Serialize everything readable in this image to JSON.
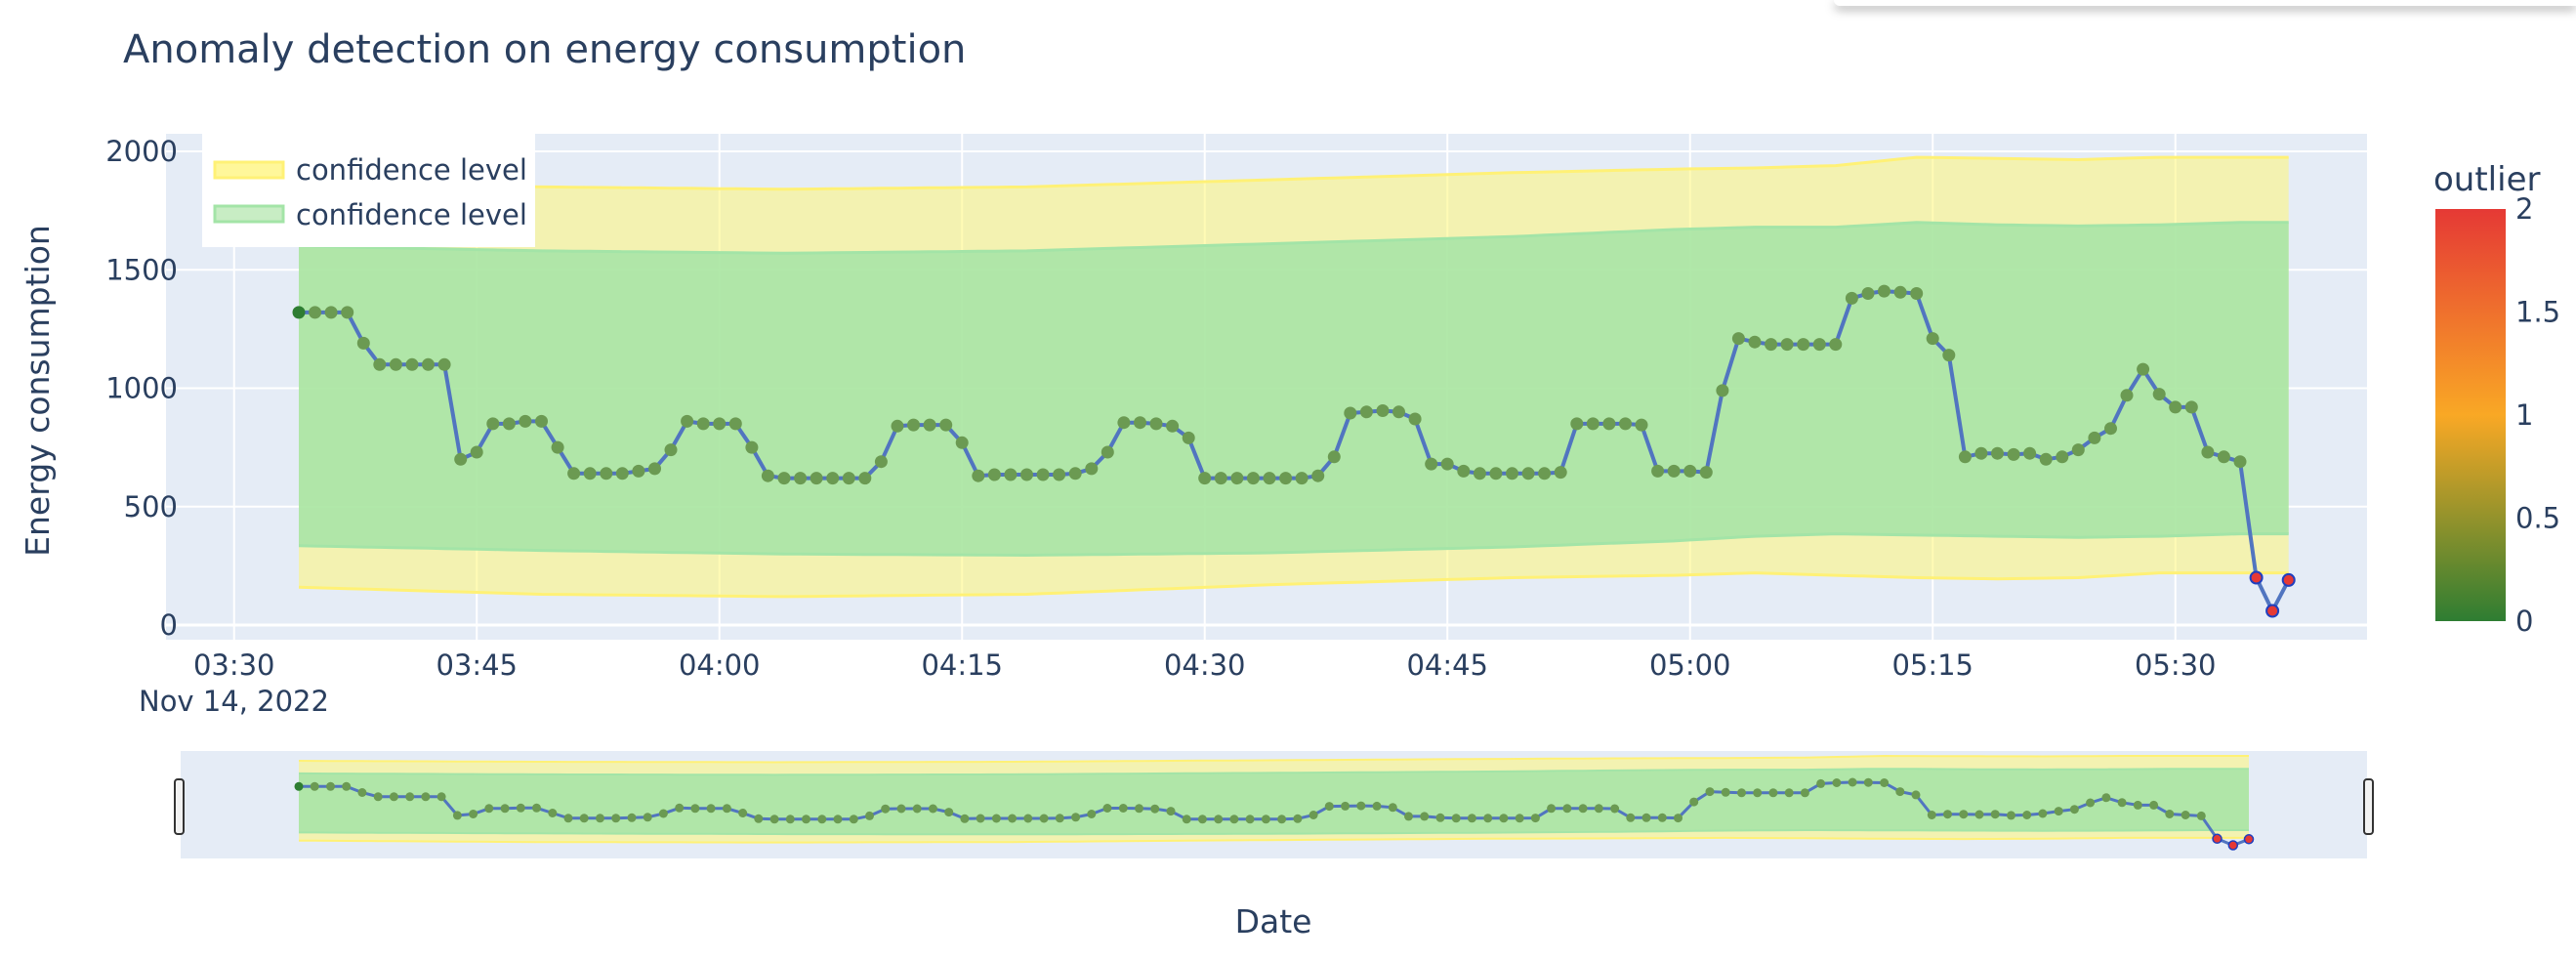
{
  "chart_data": {
    "type": "line",
    "title": "Anomaly detection on energy consumption",
    "xlabel": "Date",
    "ylabel": "Energy consumption",
    "x_start": "2022-11-14 03:34",
    "x_step_minutes": 1,
    "x_ticks": [
      "03:30",
      "03:45",
      "04:00",
      "04:15",
      "04:30",
      "04:45",
      "05:00",
      "05:15",
      "05:30"
    ],
    "x_date_label": "Nov 14, 2022",
    "y_ticks": [
      0,
      500,
      1000,
      1500,
      2000
    ],
    "ylim": [
      -55,
      2080
    ],
    "grid": true,
    "legend_position": "top-left",
    "series": [
      {
        "name": "Energy consumption",
        "values": [
          1320,
          1320,
          1320,
          1320,
          1190,
          1100,
          1100,
          1100,
          1100,
          1100,
          700,
          730,
          850,
          850,
          860,
          860,
          750,
          640,
          640,
          640,
          640,
          650,
          660,
          740,
          860,
          850,
          850,
          850,
          750,
          630,
          620,
          620,
          620,
          620,
          620,
          620,
          690,
          840,
          845,
          845,
          845,
          770,
          630,
          635,
          635,
          635,
          635,
          635,
          640,
          660,
          730,
          855,
          855,
          850,
          840,
          790,
          620,
          620,
          620,
          620,
          620,
          620,
          620,
          630,
          710,
          895,
          900,
          905,
          900,
          870,
          680,
          680,
          650,
          640,
          640,
          640,
          640,
          640,
          645,
          850,
          850,
          850,
          850,
          845,
          650,
          650,
          650,
          645,
          990,
          1210,
          1195,
          1185,
          1185,
          1185,
          1185,
          1185,
          1380,
          1400,
          1410,
          1405,
          1400,
          1210,
          1140,
          710,
          725,
          725,
          720,
          725,
          700,
          710,
          740,
          790,
          830,
          970,
          1080,
          975,
          920,
          920,
          730,
          710,
          690,
          200,
          60,
          190
        ],
        "outlier": [
          0,
          0,
          0,
          0,
          0,
          0,
          0,
          0,
          0,
          0,
          0,
          0,
          0,
          0,
          0,
          0,
          0,
          0,
          0,
          0,
          0,
          0,
          0,
          0,
          0,
          0,
          0,
          0,
          0,
          0,
          0,
          0,
          0,
          0,
          0,
          0,
          0,
          0,
          0,
          0,
          0,
          0,
          0,
          0,
          0,
          0,
          0,
          0,
          0,
          0,
          0,
          0,
          0,
          0,
          0,
          0,
          0,
          0,
          0,
          0,
          0,
          0,
          0,
          0,
          0,
          0,
          0,
          0,
          0,
          0,
          0,
          0,
          0,
          0,
          0,
          0,
          0,
          0,
          0,
          0,
          0,
          0,
          0,
          0,
          0,
          0,
          0,
          0,
          0,
          0,
          0,
          0,
          0,
          0,
          0,
          0,
          0,
          0,
          0,
          0,
          0,
          0,
          0,
          0,
          0,
          0,
          0,
          0,
          0,
          0,
          0,
          0,
          0,
          0,
          0,
          0,
          0,
          0,
          0,
          0,
          0,
          2,
          2,
          2
        ]
      },
      {
        "name": "confidence level",
        "color": "#fff176",
        "upper_anchor_values": [
          1870,
          1850,
          1840,
          1850,
          1880,
          1910,
          1925,
          1930,
          1940,
          1975,
          1970,
          1965,
          1975,
          1975
        ],
        "lower_anchor_values": [
          160,
          130,
          120,
          130,
          170,
          200,
          210,
          220,
          210,
          200,
          195,
          200,
          220,
          220
        ]
      },
      {
        "name": "confidence level",
        "color": "#a3e4a7",
        "upper_anchor_values": [
          1600,
          1580,
          1570,
          1580,
          1610,
          1640,
          1670,
          1680,
          1680,
          1700,
          1690,
          1685,
          1690,
          1700
        ],
        "lower_anchor_values": [
          335,
          315,
          300,
          295,
          305,
          330,
          355,
          375,
          385,
          380,
          375,
          370,
          375,
          385
        ]
      }
    ],
    "anchor_minutes": [
      0,
      15,
      30,
      45,
      60,
      75,
      85,
      90,
      95,
      100,
      105,
      110,
      115,
      120
    ],
    "coloraxis": {
      "title": "outlier",
      "ticks": [
        "0",
        "0.5",
        "1",
        "1.5",
        "2"
      ],
      "range": [
        0,
        2
      ],
      "colors": [
        "#2e7d32",
        "#f9a825",
        "#e53935"
      ]
    },
    "colors": {
      "plot_bg": "#e5ecf6",
      "line": "#5175c0",
      "marker": "#6b9a52",
      "outlier_edge": "#1f3fbf"
    }
  }
}
